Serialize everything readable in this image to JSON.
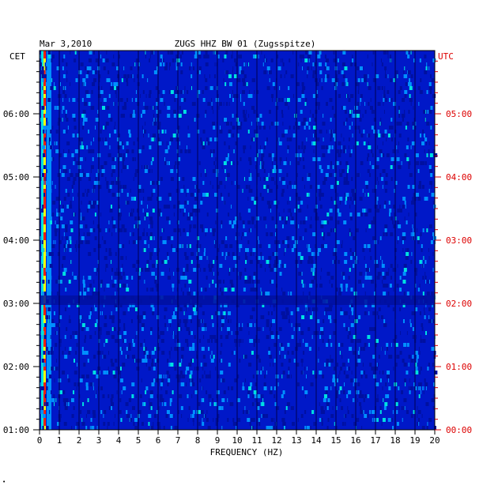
{
  "chart_data": {
    "type": "heatmap",
    "date": "Mar 3,2010",
    "title": "ZUGS HHZ BW 01 (Zugsspitze)",
    "left_axis_label": "CET",
    "right_axis_label": "UTC",
    "xlabel": "FREQUENCY (HZ)",
    "xlim": [
      0,
      20
    ],
    "x_ticks": [
      "0",
      "1",
      "2",
      "3",
      "4",
      "5",
      "6",
      "7",
      "8",
      "9",
      "10",
      "11",
      "12",
      "13",
      "14",
      "15",
      "16",
      "17",
      "18",
      "19",
      "20"
    ],
    "left_time_ticks": [
      "01:00",
      "02:00",
      "03:00",
      "04:00",
      "05:00",
      "06:00"
    ],
    "right_time_ticks": [
      "00:00",
      "01:00",
      "02:00",
      "03:00",
      "04:00",
      "05:00"
    ],
    "time_range_cet": [
      "01:00",
      "07:00"
    ],
    "colors": {
      "background": "#0018c8",
      "low": "#0010a0",
      "mid": "#0090ff",
      "high": "#00e0e0",
      "peak": "#ffff00",
      "max": "#ff2000",
      "utc_label": "#dd0000"
    }
  },
  "footnote": "•"
}
